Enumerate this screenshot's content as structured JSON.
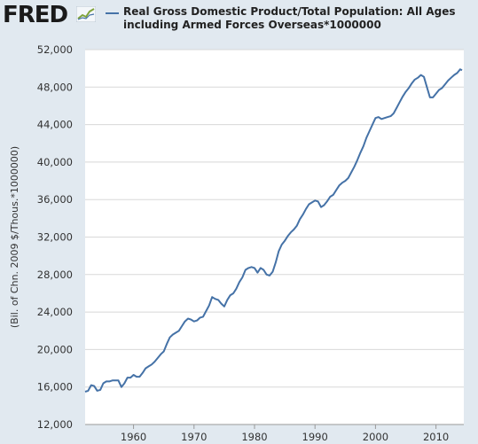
{
  "header": {
    "logo_text": "FRED",
    "series_title_line1": "Real Gross Domestic Product/Total Population: All Ages",
    "series_title_line2": "including Armed Forces Overseas*1000000"
  },
  "colors": {
    "line": "#4572a7",
    "background": "#e1e9f0",
    "plot_bg": "#ffffff",
    "grid": "#d8d8d8"
  },
  "icons": {
    "logo_graph": "line-chart-icon"
  },
  "chart_data": {
    "type": "line",
    "title": "Real Gross Domestic Product/Total Population: All Ages including Armed Forces Overseas*1000000",
    "ylabel": "(Bil. of Chn. 2009 $/Thous.*1000000)",
    "xlabel": "",
    "xlim": [
      1952.0,
      2014.6
    ],
    "ylim": [
      12000,
      52000
    ],
    "x_ticks": [
      1960,
      1970,
      1980,
      1990,
      2000,
      2010
    ],
    "x_tick_labels": [
      "1960",
      "1970",
      "1980",
      "1990",
      "2000",
      "2010"
    ],
    "y_ticks": [
      12000,
      16000,
      20000,
      24000,
      28000,
      32000,
      36000,
      40000,
      44000,
      48000,
      52000
    ],
    "y_tick_labels": [
      "12,000",
      "16,000",
      "20,000",
      "24,000",
      "28,000",
      "32,000",
      "36,000",
      "40,000",
      "44,000",
      "48,000",
      "52,000"
    ],
    "grid": "horizontal",
    "legend": "top",
    "series": [
      {
        "x": [
          1952.0,
          1952.5,
          1953.0,
          1953.5,
          1954.0,
          1954.5,
          1955.0,
          1955.5,
          1956.0,
          1956.5,
          1957.0,
          1957.5,
          1958.0,
          1958.5,
          1959.0,
          1959.5,
          1960.0,
          1960.5,
          1961.0,
          1961.5,
          1962.0,
          1962.5,
          1963.0,
          1963.5,
          1964.0,
          1964.5,
          1965.0,
          1965.5,
          1966.0,
          1966.5,
          1967.0,
          1967.5,
          1968.0,
          1968.5,
          1969.0,
          1969.5,
          1970.0,
          1970.5,
          1971.0,
          1971.5,
          1972.0,
          1972.5,
          1973.0,
          1973.5,
          1974.0,
          1974.5,
          1975.0,
          1975.5,
          1976.0,
          1976.5,
          1977.0,
          1977.5,
          1978.0,
          1978.5,
          1979.0,
          1979.5,
          1980.0,
          1980.5,
          1981.0,
          1981.5,
          1982.0,
          1982.5,
          1983.0,
          1983.5,
          1984.0,
          1984.5,
          1985.0,
          1985.5,
          1986.0,
          1986.5,
          1987.0,
          1987.5,
          1988.0,
          1988.5,
          1989.0,
          1989.5,
          1990.0,
          1990.5,
          1991.0,
          1991.5,
          1992.0,
          1992.5,
          1993.0,
          1993.5,
          1994.0,
          1994.5,
          1995.0,
          1995.5,
          1996.0,
          1996.5,
          1997.0,
          1997.5,
          1998.0,
          1998.5,
          1999.0,
          1999.5,
          2000.0,
          2000.5,
          2001.0,
          2001.5,
          2002.0,
          2002.5,
          2003.0,
          2003.5,
          2004.0,
          2004.5,
          2005.0,
          2005.5,
          2006.0,
          2006.5,
          2007.0,
          2007.5,
          2008.0,
          2008.5,
          2009.0,
          2009.5,
          2010.0,
          2010.5,
          2011.0,
          2011.5,
          2012.0,
          2012.5,
          2013.0,
          2013.5,
          2014.0,
          2014.3
        ],
        "values": [
          15500,
          15600,
          16200,
          16100,
          15600,
          15700,
          16400,
          16600,
          16600,
          16700,
          16700,
          16700,
          16000,
          16400,
          17000,
          17000,
          17300,
          17100,
          17100,
          17500,
          18000,
          18200,
          18400,
          18700,
          19100,
          19500,
          19800,
          20600,
          21300,
          21600,
          21800,
          22000,
          22500,
          23000,
          23300,
          23200,
          23000,
          23100,
          23400,
          23500,
          24100,
          24700,
          25600,
          25400,
          25300,
          24900,
          24600,
          25300,
          25800,
          26000,
          26500,
          27200,
          27700,
          28500,
          28700,
          28800,
          28700,
          28200,
          28700,
          28500,
          28000,
          27900,
          28300,
          29300,
          30500,
          31200,
          31600,
          32100,
          32500,
          32800,
          33200,
          33900,
          34400,
          35000,
          35500,
          35700,
          35900,
          35800,
          35200,
          35400,
          35800,
          36300,
          36500,
          37000,
          37500,
          37800,
          38000,
          38300,
          38900,
          39500,
          40200,
          41000,
          41700,
          42600,
          43300,
          44000,
          44700,
          44800,
          44600,
          44700,
          44800,
          44900,
          45200,
          45800,
          46400,
          47000,
          47500,
          47900,
          48400,
          48800,
          49000,
          49300,
          49100,
          48000,
          46900,
          46900,
          47300,
          47700,
          47900,
          48300,
          48700,
          49000,
          49300,
          49500,
          49900,
          49800
        ]
      }
    ]
  }
}
